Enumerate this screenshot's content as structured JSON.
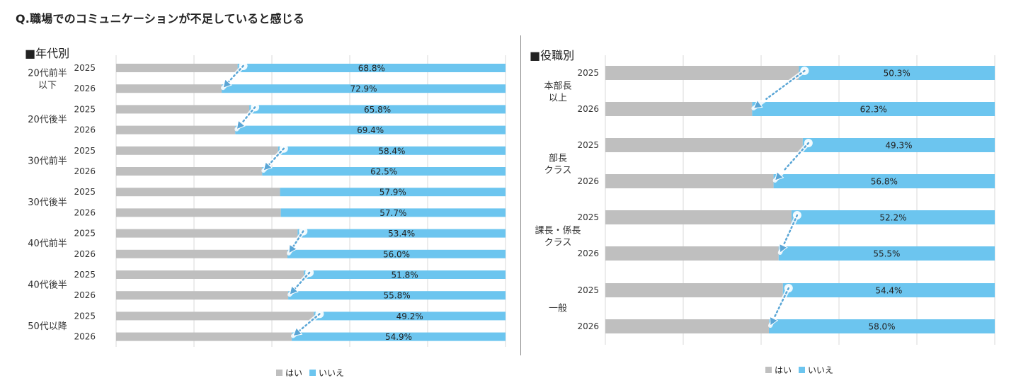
{
  "title": "Q.職場でのコミュニケーションが不足していると感じる",
  "colors": {
    "yes": "#bfbfbf",
    "no": "#6cc5ef",
    "arrow": "#5aa6d6",
    "grid": "#d9d9d9"
  },
  "legend": {
    "yes": "はい",
    "no": "いいえ"
  },
  "chart_data": [
    {
      "type": "bar",
      "stacked": true,
      "orientation": "horizontal",
      "title": "■年代別",
      "series": [
        {
          "name": "はい",
          "values": [
            31.2,
            27.1,
            34.2,
            30.6,
            41.6,
            37.5,
            42.1,
            42.3,
            46.6,
            44.0,
            48.2,
            44.2,
            50.8,
            45.1
          ]
        },
        {
          "name": "いいえ",
          "values": [
            68.8,
            72.9,
            65.8,
            69.4,
            58.4,
            62.5,
            57.9,
            57.7,
            53.4,
            56.0,
            51.8,
            55.8,
            49.2,
            54.9
          ]
        }
      ],
      "data_labels": [
        "68.8%",
        "72.9%",
        "65.8%",
        "69.4%",
        "58.4%",
        "62.5%",
        "57.9%",
        "57.7%",
        "53.4%",
        "56.0%",
        "51.8%",
        "55.8%",
        "49.2%",
        "54.9%"
      ],
      "groups": [
        {
          "label": "20代前半\n以下",
          "years": [
            "2025",
            "2026"
          ]
        },
        {
          "label": "20代後半",
          "years": [
            "2025",
            "2026"
          ]
        },
        {
          "label": "30代前半",
          "years": [
            "2025",
            "2026"
          ]
        },
        {
          "label": "30代後半",
          "years": [
            "2025",
            "2026"
          ]
        },
        {
          "label": "40代前半",
          "years": [
            "2025",
            "2026"
          ]
        },
        {
          "label": "40代後半",
          "years": [
            "2025",
            "2026"
          ]
        },
        {
          "label": "50代以降",
          "years": [
            "2025",
            "2026"
          ]
        }
      ],
      "arrows": [
        0,
        1,
        2,
        4,
        5,
        6
      ],
      "xlim": [
        0,
        100
      ],
      "grid": true
    },
    {
      "type": "bar",
      "stacked": true,
      "orientation": "horizontal",
      "title": "■役職別",
      "series": [
        {
          "name": "はい",
          "values": [
            49.7,
            37.7,
            50.7,
            43.2,
            47.8,
            44.5,
            45.6,
            42.0
          ]
        },
        {
          "name": "いいえ",
          "values": [
            50.3,
            62.3,
            49.3,
            56.8,
            52.2,
            55.5,
            54.4,
            58.0
          ]
        }
      ],
      "data_labels": [
        "50.3%",
        "62.3%",
        "49.3%",
        "56.8%",
        "52.2%",
        "55.5%",
        "54.4%",
        "58.0%"
      ],
      "groups": [
        {
          "label": "本部長\n以上",
          "years": [
            "2025",
            "2026"
          ]
        },
        {
          "label": "部長\nクラス",
          "years": [
            "2025",
            "2026"
          ]
        },
        {
          "label": "課長・係長\nクラス",
          "years": [
            "2025",
            "2026"
          ]
        },
        {
          "label": "一般",
          "years": [
            "2025",
            "2026"
          ]
        }
      ],
      "arrows": [
        0,
        1,
        2,
        3
      ],
      "xlim": [
        0,
        100
      ],
      "grid": true
    }
  ]
}
